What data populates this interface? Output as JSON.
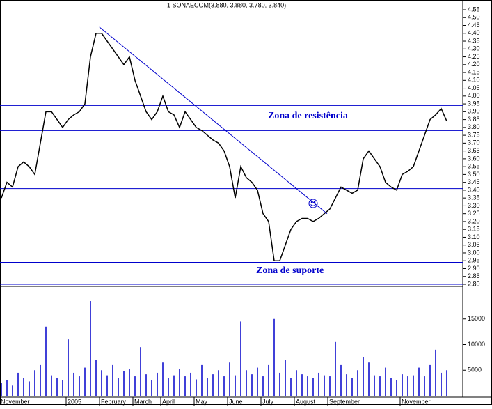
{
  "chart_data": {
    "type": "line",
    "title": "1 SONAECOM(3.880, 3.880, 3.780, 3.840)",
    "annotations": [
      "Zona de resistência",
      "Zona de suporte"
    ],
    "categories": [
      "November",
      null,
      null,
      null,
      null,
      null,
      null,
      null,
      null,
      null,
      null,
      null,
      "2005",
      null,
      null,
      null,
      null,
      null,
      "February",
      null,
      null,
      null,
      null,
      null,
      "March",
      null,
      null,
      null,
      null,
      "April",
      null,
      null,
      null,
      null,
      null,
      "May",
      null,
      null,
      null,
      null,
      null,
      "June",
      null,
      null,
      null,
      null,
      null,
      "July",
      null,
      null,
      null,
      null,
      null,
      "August",
      null,
      null,
      null,
      null,
      null,
      "September",
      null,
      null,
      null,
      null,
      null,
      null,
      null,
      null,
      null,
      null,
      null,
      null,
      "November",
      null,
      null,
      null,
      null,
      null,
      null,
      null,
      null
    ],
    "series": [
      {
        "color": "#000000",
        "values": [
          3.35,
          3.45,
          3.42,
          3.55,
          3.58,
          3.55,
          3.5,
          3.7,
          3.9,
          3.9,
          3.85,
          3.8,
          3.85,
          3.88,
          3.9,
          3.95,
          4.25,
          4.4,
          4.4,
          4.35,
          4.3,
          4.25,
          4.2,
          4.25,
          4.1,
          4.0,
          3.9,
          3.85,
          3.9,
          4.0,
          3.9,
          3.88,
          3.8,
          3.9,
          3.85,
          3.8,
          3.78,
          3.75,
          3.72,
          3.7,
          3.65,
          3.55,
          3.35,
          3.55,
          3.48,
          3.45,
          3.4,
          3.25,
          3.2,
          2.95,
          2.95,
          3.05,
          3.15,
          3.2,
          3.22,
          3.22,
          3.2,
          3.22,
          3.25,
          3.28,
          3.35,
          3.42,
          3.4,
          3.38,
          3.4,
          3.6,
          3.65,
          3.6,
          3.55,
          3.45,
          3.42,
          3.4,
          3.5,
          3.52,
          3.55,
          3.65,
          3.75,
          3.85,
          3.88,
          3.92,
          3.84
        ]
      }
    ],
    "ylim": [
      2.8,
      4.55
    ],
    "yticks": [
      4.55,
      {
        "value": 4.5,
        "label": "4.50"
      },
      4.45,
      {
        "value": 4.4,
        "label": "4.40"
      },
      4.35,
      {
        "value": 4.3,
        "label": "4.30"
      },
      4.25,
      {
        "value": 4.2,
        "label": "4.20"
      },
      4.15,
      {
        "value": 4.1,
        "label": "4.10"
      },
      4.05,
      {
        "value": 4,
        "label": "4.00"
      },
      3.95,
      {
        "value": 3.9,
        "label": "3.90"
      },
      3.85,
      {
        "value": 3.8,
        "label": "3.80"
      },
      3.75,
      {
        "value": 3.7,
        "label": "3.70"
      },
      3.65,
      {
        "value": 3.6,
        "label": "3.60"
      },
      3.55,
      {
        "value": 3.5,
        "label": "3.50"
      },
      3.45,
      {
        "value": 3.4,
        "label": "3.40"
      },
      3.35,
      {
        "value": 3.3,
        "label": "3.30"
      },
      3.25,
      {
        "value": 3.2,
        "label": "3.20"
      },
      3.15,
      {
        "value": 3.1,
        "label": "3.10"
      },
      3.05,
      {
        "value": 3,
        "label": "3.00"
      },
      2.95,
      {
        "value": 2.9,
        "label": "2.90"
      },
      2.85,
      {
        "value": 2.8,
        "label": "2.80"
      }
    ],
    "levels": [
      3.94,
      3.78,
      3.41,
      2.94
    ],
    "level_color": "#0000cc",
    "trendline": {
      "x": [
        17.6,
        58.5
      ],
      "y": [
        4.44,
        3.25
      ]
    },
    "volume": {
      "color": "#0000cc",
      "ylim": [
        0,
        20000
      ],
      "yticks": [
        5000,
        10000,
        15000
      ],
      "values": [
        2500,
        3000,
        2000,
        4500,
        3500,
        2800,
        5000,
        6000,
        13500,
        4000,
        3500,
        3000,
        11000,
        4500,
        3800,
        5500,
        18500,
        7000,
        5000,
        4000,
        6000,
        3500,
        4800,
        5200,
        3800,
        9500,
        4200,
        3000,
        4500,
        6500,
        3500,
        4000,
        5200,
        3800,
        4500,
        3200,
        6000,
        3500,
        4200,
        5000,
        3800,
        6500,
        4000,
        14500,
        5000,
        4200,
        5500,
        3800,
        6000,
        15000,
        4500,
        7000,
        3500,
        5000,
        4200,
        3800,
        3500,
        4500,
        4000,
        3800,
        10500,
        6000,
        4200,
        3500,
        5000,
        7500,
        6500,
        4000,
        3800,
        5500,
        3500,
        3000,
        4200,
        3800,
        4000,
        5500,
        3800,
        6000,
        9000,
        4500,
        5000
      ]
    }
  }
}
